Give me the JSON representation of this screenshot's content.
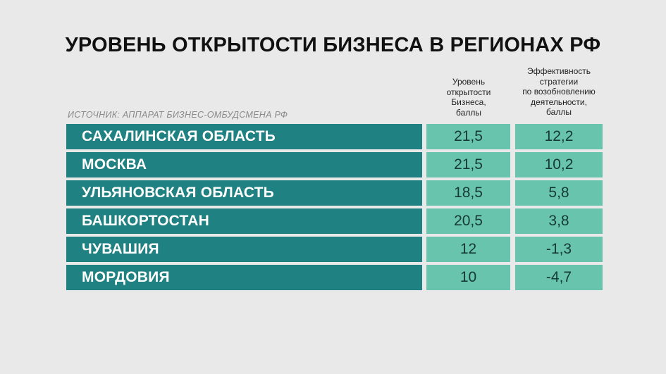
{
  "title": "УРОВЕНЬ ОТКРЫТОСТИ БИЗНЕСА В РЕГИОНАХ РФ",
  "source": "ИСТОЧНИК: АППАРАТ БИЗНЕС-ОМБУДСМЕНА РФ",
  "columns": {
    "openness": [
      "Уровень",
      "открытости",
      "Бизнеса,",
      "баллы"
    ],
    "efficiency": [
      "Эффективность",
      "стратегии",
      "по возобновлению",
      "деятельности,",
      "баллы"
    ]
  },
  "rows": [
    {
      "region": "САХАЛИНСКАЯ ОБЛАСТЬ",
      "openness": "21,5",
      "efficiency": "12,2"
    },
    {
      "region": "МОСКВА",
      "openness": "21,5",
      "efficiency": "10,2"
    },
    {
      "region": "УЛЬЯНОВСКАЯ ОБЛАСТЬ",
      "openness": "18,5",
      "efficiency": "5,8"
    },
    {
      "region": "БАШКОРТОСТАН",
      "openness": "20,5",
      "efficiency": "3,8"
    },
    {
      "region": "ЧУВАШИЯ",
      "openness": "12",
      "efficiency": "-1,3"
    },
    {
      "region": "МОРДОВИЯ",
      "openness": "10",
      "efficiency": "-4,7"
    }
  ],
  "colors": {
    "background": "#e9e9e9",
    "region_cell": "#1f8181",
    "value_cell": "#69c4ad"
  },
  "chart_data": {
    "type": "table",
    "title": "УРОВЕНЬ ОТКРЫТОСТИ БИЗНЕСА В РЕГИОНАХ РФ",
    "categories": [
      "САХАЛИНСКАЯ ОБЛАСТЬ",
      "МОСКВА",
      "УЛЬЯНОВСКАЯ ОБЛАСТЬ",
      "БАШКОРТОСТАН",
      "ЧУВАШИЯ",
      "МОРДОВИЯ"
    ],
    "series": [
      {
        "name": "Уровень открытости Бизнеса, баллы",
        "values": [
          21.5,
          21.5,
          18.5,
          20.5,
          12,
          10
        ]
      },
      {
        "name": "Эффективность стратегии по возобновлению деятельности, баллы",
        "values": [
          12.2,
          10.2,
          5.8,
          3.8,
          -1.3,
          -4.7
        ]
      }
    ]
  }
}
